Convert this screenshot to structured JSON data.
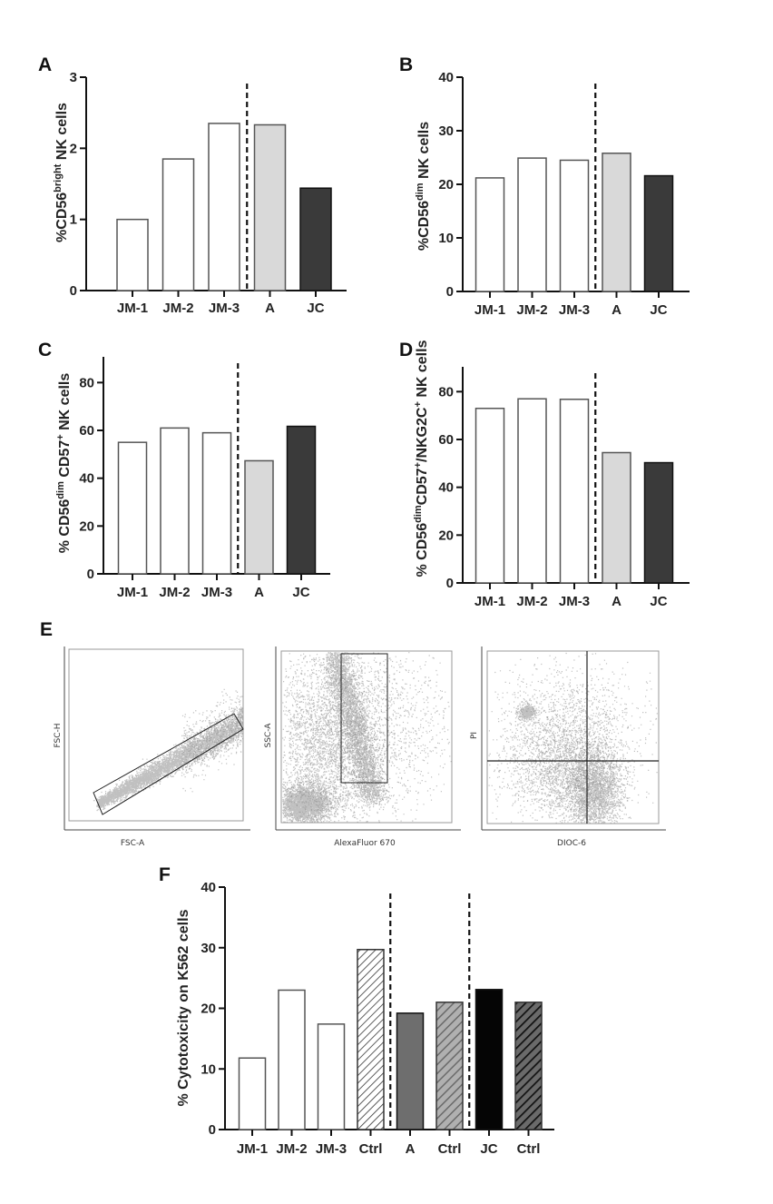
{
  "chart_data": [
    {
      "panel": "A",
      "type": "bar",
      "title": "",
      "xlabel": "",
      "ylabel": "%CD56bright NK cells",
      "ylabel_parts": [
        {
          "t": "%CD56"
        },
        {
          "t": "bright",
          "sup": true
        },
        {
          "t": " NK cells"
        }
      ],
      "categories": [
        "JM-1",
        "JM-2",
        "JM-3",
        "A",
        "JC"
      ],
      "values": [
        1.0,
        1.85,
        2.35,
        2.33,
        1.44
      ],
      "fills": [
        "#ffffff",
        "#ffffff",
        "#ffffff",
        "#d9d9d9",
        "#3a3a3a"
      ],
      "ylim": [
        0,
        3
      ],
      "yticks": [
        0,
        1,
        2,
        3
      ],
      "separators_after_index": [
        2
      ],
      "grid": false
    },
    {
      "panel": "B",
      "type": "bar",
      "title": "",
      "xlabel": "",
      "ylabel": "%CD56dim NK cells",
      "ylabel_parts": [
        {
          "t": "%CD56"
        },
        {
          "t": "dim",
          "sup": true
        },
        {
          "t": " NK cells"
        }
      ],
      "categories": [
        "JM-1",
        "JM-2",
        "JM-3",
        "A",
        "JC"
      ],
      "values": [
        21.2,
        24.9,
        24.5,
        25.8,
        21.6
      ],
      "fills": [
        "#ffffff",
        "#ffffff",
        "#ffffff",
        "#d9d9d9",
        "#3a3a3a"
      ],
      "ylim": [
        0,
        40
      ],
      "yticks": [
        0,
        10,
        20,
        30,
        40
      ],
      "separators_after_index": [
        2
      ],
      "grid": false
    },
    {
      "panel": "C",
      "type": "bar",
      "title": "",
      "xlabel": "",
      "ylabel": "% CD56dim CD57+ NK cells",
      "ylabel_parts": [
        {
          "t": "% CD56"
        },
        {
          "t": "dim",
          "sup": true
        },
        {
          "t": " CD57"
        },
        {
          "t": "+",
          "sup": true
        },
        {
          "t": " NK cells"
        }
      ],
      "categories": [
        "JM-1",
        "JM-2",
        "JM-3",
        "A",
        "JC"
      ],
      "values": [
        55,
        61,
        59,
        47.3,
        61.7
      ],
      "fills": [
        "#ffffff",
        "#ffffff",
        "#ffffff",
        "#d9d9d9",
        "#3a3a3a"
      ],
      "ylim": [
        0,
        90
      ],
      "yticks": [
        0,
        20,
        40,
        60,
        80
      ],
      "separators_after_index": [
        2
      ],
      "grid": false
    },
    {
      "panel": "D",
      "type": "bar",
      "title": "",
      "xlabel": "",
      "ylabel": "% CD56dimCD57+/NKG2C+ NK cells",
      "ylabel_parts": [
        {
          "t": "% CD56"
        },
        {
          "t": "dim",
          "sup": true
        },
        {
          "t": "CD57"
        },
        {
          "t": "+",
          "sup": true
        },
        {
          "t": "/NKG2C"
        },
        {
          "t": "+",
          "sup": true
        },
        {
          "t": " NK cells"
        }
      ],
      "categories": [
        "JM-1",
        "JM-2",
        "JM-3",
        "A",
        "JC"
      ],
      "values": [
        73,
        77,
        76.8,
        54.5,
        50.3
      ],
      "fills": [
        "#ffffff",
        "#ffffff",
        "#ffffff",
        "#d9d9d9",
        "#3a3a3a"
      ],
      "ylim": [
        0,
        90
      ],
      "yticks": [
        0,
        20,
        40,
        60,
        80
      ],
      "separators_after_index": [
        2
      ],
      "grid": false
    },
    {
      "panel": "F",
      "type": "bar",
      "title": "",
      "xlabel": "",
      "ylabel": "% Cytotoxicity on K562 cells",
      "ylabel_parts": [
        {
          "t": "% Cytotoxicity on K562 cells"
        }
      ],
      "categories": [
        "JM-1",
        "JM-2",
        "JM-3",
        "Ctrl",
        "A",
        "Ctrl",
        "JC",
        "Ctrl"
      ],
      "values": [
        11.8,
        23.0,
        17.4,
        29.7,
        19.2,
        21.0,
        23.1,
        21.0
      ],
      "fills": [
        "#ffffff",
        "#ffffff",
        "#ffffff",
        "hatch-light",
        "#6e6e6e",
        "hatch-gray",
        "#050505",
        "hatch-dark"
      ],
      "ylim": [
        0,
        40
      ],
      "yticks": [
        0,
        10,
        20,
        30,
        40
      ],
      "separators_after_index": [
        3,
        5
      ],
      "grid": false
    }
  ],
  "panel_labels": {
    "A": "A",
    "B": "B",
    "C": "C",
    "D": "D",
    "E": "E",
    "F": "F"
  },
  "flow_plots": [
    {
      "name": "singlet-gate",
      "xlabel": "FSC-A",
      "ylabel": "FSC-H",
      "gate": "diagonal-rectangle"
    },
    {
      "name": "nk-gate",
      "xlabel": "AlexaFluor 670",
      "ylabel": "SSC-A",
      "gate": "vertical-rectangle"
    },
    {
      "name": "viability-quadrant",
      "xlabel": "DIOC-6",
      "ylabel": "PI",
      "gate": "quadrant"
    }
  ],
  "colors": {
    "axis": "#111111",
    "light_gray": "#d9d9d9",
    "dark_gray": "#3a3a3a",
    "mid_gray": "#6e6e6e",
    "black": "#050505",
    "dots": "#8c8c8c"
  }
}
